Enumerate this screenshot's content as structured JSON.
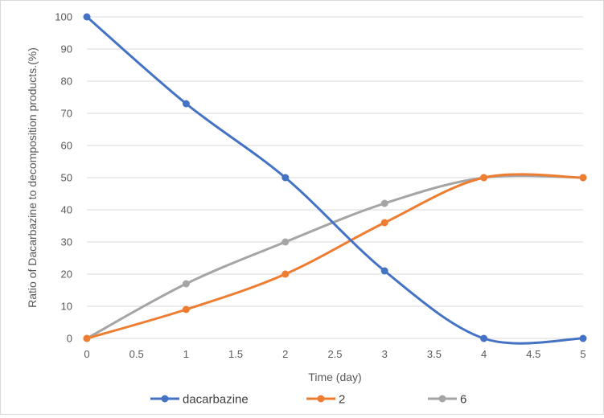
{
  "chart_data": {
    "type": "line",
    "title": "",
    "xlabel": "Time (day)",
    "ylabel": "Ratio of Dacarbazine to decomposition products.(%)",
    "xlim": [
      0,
      5
    ],
    "ylim": [
      0,
      100
    ],
    "x_ticks": [
      0,
      0.5,
      1,
      1.5,
      2,
      2.5,
      3,
      3.5,
      4,
      4.5,
      5
    ],
    "y_ticks": [
      0,
      10,
      20,
      30,
      40,
      50,
      60,
      70,
      80,
      90,
      100
    ],
    "grid": "horizontal",
    "smooth": true,
    "legend_position": "bottom",
    "series": [
      {
        "name": "dacarbazine",
        "color": "#4472c4",
        "x": [
          0,
          1,
          2,
          3,
          4,
          5
        ],
        "values": [
          100,
          73,
          50,
          21,
          0,
          0
        ]
      },
      {
        "name": "2",
        "color": "#ed7d31",
        "x": [
          0,
          1,
          2,
          3,
          4,
          5
        ],
        "values": [
          0,
          9,
          20,
          36,
          50,
          50
        ]
      },
      {
        "name": "6",
        "color": "#a5a5a5",
        "x": [
          0,
          1,
          2,
          3,
          4,
          5
        ],
        "values": [
          0,
          17,
          30,
          42,
          50,
          50
        ]
      }
    ]
  }
}
